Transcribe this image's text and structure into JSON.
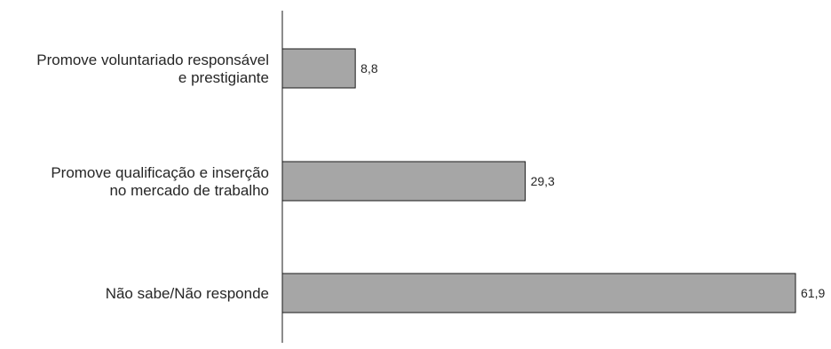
{
  "chart_data": {
    "type": "bar",
    "orientation": "horizontal",
    "categories": [
      [
        "Promove voluntariado responsável",
        "e prestigiante"
      ],
      [
        "Promove qualificação e inserção",
        "no mercado de trabalho"
      ],
      [
        "Não sabe/Não responde"
      ]
    ],
    "values": [
      8.8,
      29.3,
      61.9
    ],
    "value_labels": [
      "8,8",
      "29,3",
      "61,9"
    ],
    "xlim": [
      0,
      61.9
    ],
    "grid": false,
    "colors": {
      "bar_fill": "#a6a6a6",
      "bar_stroke": "#1a1a1a",
      "axis": "#1a1a1a",
      "text": "#262626"
    }
  }
}
